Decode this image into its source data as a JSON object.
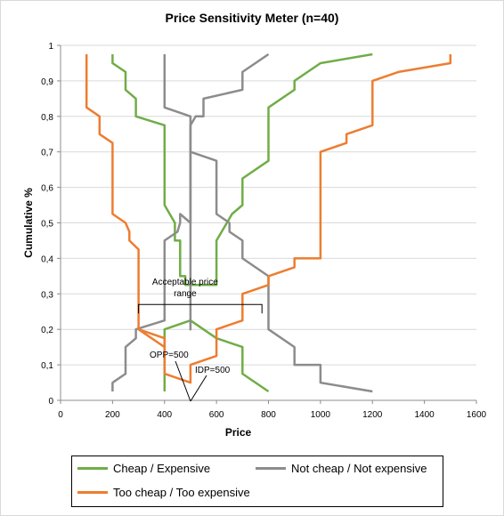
{
  "chart_data": {
    "type": "line",
    "title": "Price Sensitivity Meter (n=40)",
    "xlabel": "Price",
    "ylabel": "Cumulative %",
    "xlim": [
      0,
      1600
    ],
    "ylim": [
      0,
      1
    ],
    "x_ticks": [
      "0",
      "200",
      "400",
      "600",
      "800",
      "1000",
      "1200",
      "1400",
      "1600"
    ],
    "y_ticks": [
      "0",
      "0,1",
      "0,2",
      "0,3",
      "0,4",
      "0,5",
      "0,6",
      "0,7",
      "0,8",
      "0,9",
      "1"
    ],
    "grid": "horizontal",
    "legend_position": "bottom",
    "series": [
      {
        "name": "Cheap / Expensive",
        "color": "#70ad47",
        "groups": [
          [
            [
              200,
              0.975
            ],
            [
              200,
              0.95
            ],
            [
              250,
              0.925
            ],
            [
              250,
              0.875
            ],
            [
              290,
              0.85
            ],
            [
              290,
              0.8
            ],
            [
              400,
              0.775
            ],
            [
              400,
              0.55
            ],
            [
              420,
              0.525
            ],
            [
              440,
              0.5
            ],
            [
              440,
              0.45
            ],
            [
              460,
              0.45
            ],
            [
              460,
              0.4
            ],
            [
              460,
              0.35
            ],
            [
              480,
              0.35
            ],
            [
              480,
              0.325
            ],
            [
              560,
              0.325
            ],
            [
              600,
              0.325
            ],
            [
              600,
              0.45
            ],
            [
              640,
              0.5
            ],
            [
              660,
              0.525
            ],
            [
              700,
              0.55
            ],
            [
              700,
              0.625
            ],
            [
              800,
              0.675
            ],
            [
              800,
              0.825
            ],
            [
              900,
              0.875
            ],
            [
              900,
              0.9
            ],
            [
              1000,
              0.95
            ],
            [
              1200,
              0.975
            ]
          ],
          [
            [
              400,
              0.025
            ],
            [
              400,
              0.2
            ],
            [
              500,
              0.225
            ],
            [
              600,
              0.175
            ],
            [
              700,
              0.15
            ],
            [
              700,
              0.075
            ],
            [
              800,
              0.025
            ]
          ]
        ]
      },
      {
        "name": "Not cheap / Not expensive",
        "color": "#8c8c8c",
        "groups": [
          [
            [
              200,
              0.025
            ],
            [
              200,
              0.05
            ],
            [
              250,
              0.075
            ],
            [
              250,
              0.15
            ],
            [
              290,
              0.175
            ],
            [
              290,
              0.2
            ],
            [
              400,
              0.225
            ],
            [
              400,
              0.45
            ],
            [
              450,
              0.475
            ],
            [
              460,
              0.5
            ],
            [
              460,
              0.525
            ],
            [
              500,
              0.5
            ],
            [
              500,
              0.725
            ],
            [
              500,
              0.775
            ],
            [
              520,
              0.8
            ],
            [
              550,
              0.8
            ],
            [
              550,
              0.85
            ],
            [
              700,
              0.875
            ],
            [
              700,
              0.925
            ],
            [
              800,
              0.975
            ]
          ],
          [
            [
              400,
              0.975
            ],
            [
              400,
              0.825
            ],
            [
              500,
              0.8
            ],
            [
              500,
              0.675
            ],
            [
              500,
              0.25
            ],
            [
              500,
              0.2
            ],
            [
              500,
              0.7
            ],
            [
              600,
              0.675
            ],
            [
              600,
              0.525
            ],
            [
              650,
              0.5
            ],
            [
              650,
              0.475
            ],
            [
              700,
              0.45
            ],
            [
              700,
              0.4
            ],
            [
              800,
              0.35
            ],
            [
              800,
              0.2
            ],
            [
              900,
              0.15
            ],
            [
              900,
              0.1
            ],
            [
              1000,
              0.1
            ],
            [
              1000,
              0.05
            ],
            [
              1200,
              0.025
            ]
          ]
        ]
      },
      {
        "name": "Too cheap / Too expensive",
        "color": "#ed7d31",
        "groups": [
          [
            [
              100,
              0.975
            ],
            [
              100,
              0.825
            ],
            [
              150,
              0.8
            ],
            [
              150,
              0.75
            ],
            [
              200,
              0.725
            ],
            [
              200,
              0.525
            ],
            [
              250,
              0.5
            ],
            [
              265,
              0.475
            ],
            [
              265,
              0.45
            ],
            [
              300,
              0.425
            ],
            [
              300,
              0.2
            ],
            [
              400,
              0.175
            ],
            [
              400,
              0.075
            ],
            [
              500,
              0.05
            ],
            [
              500,
              0.1
            ],
            [
              600,
              0.125
            ],
            [
              600,
              0.2
            ],
            [
              700,
              0.225
            ],
            [
              700,
              0.3
            ],
            [
              800,
              0.325
            ],
            [
              800,
              0.35
            ],
            [
              900,
              0.375
            ],
            [
              900,
              0.4
            ],
            [
              1000,
              0.4
            ],
            [
              1000,
              0.45
            ],
            [
              1000,
              0.5
            ],
            [
              1000,
              0.7
            ],
            [
              1100,
              0.725
            ],
            [
              1100,
              0.75
            ],
            [
              1200,
              0.775
            ],
            [
              1200,
              0.9
            ],
            [
              1300,
              0.925
            ],
            [
              1500,
              0.95
            ],
            [
              1500,
              0.975
            ]
          ],
          [
            [
              300,
              0.2
            ],
            [
              400,
              0.15
            ],
            [
              400,
              0.175
            ]
          ]
        ]
      }
    ],
    "annotations": [
      {
        "text": "Acceptable price range",
        "x1": 300,
        "x2": 775,
        "y": 0.27
      },
      {
        "text": "OPP=500",
        "x": 500,
        "y": 0.05
      },
      {
        "text": "IDP=500",
        "x": 500,
        "y": 0.05
      }
    ]
  }
}
